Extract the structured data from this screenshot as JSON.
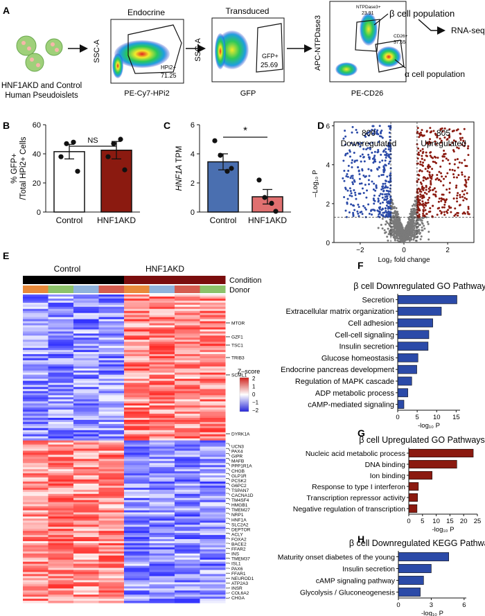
{
  "panel_labels": [
    "A",
    "B",
    "C",
    "D",
    "E",
    "F",
    "G",
    "H"
  ],
  "panel_a": {
    "cells_label_line1": "HNF1AKD and Control",
    "cells_label_line2": "Human Pseudoislets",
    "plots": [
      {
        "title": "Endocrine",
        "ylabel": "SSC-A",
        "xlabel": "PE-Cy7-HPi2",
        "gate_label": "HPi2+",
        "gate_value": "71.25"
      },
      {
        "title": "Transduced",
        "ylabel": "SSC-A",
        "xlabel": "GFP",
        "gate_label": "GFP+",
        "gate_value": "25.69"
      },
      {
        "title": "",
        "ylabel": "APC-NTPDase3",
        "xlabel": "PE-CD26",
        "gate1_label": "NTPDase3+",
        "gate1_value": "23.91",
        "gate2_label": "CD26+",
        "gate2_value": "37.55"
      }
    ],
    "beta_label": "β cell population",
    "alpha_label": "α cell population",
    "rnaseq_label": "RNA-seq"
  },
  "colors": {
    "blue": "#2b4aa8",
    "red": "#8b1a10",
    "bar_blue": "#4a6fb0",
    "bar_red": "#e07070",
    "grey": "#7a7a7a"
  },
  "chart_data": [
    {
      "id": "B",
      "type": "bar",
      "ylabel_line1": "% GFP+",
      "ylabel_line2": "/Total HPi2+ Cells",
      "categories": [
        "Control",
        "HNF1AKD"
      ],
      "values": [
        41.5,
        42.5
      ],
      "errors": [
        5,
        6
      ],
      "points": [
        [
          38,
          47,
          48,
          28
        ],
        [
          38,
          47,
          50,
          29
        ]
      ],
      "ylim": [
        0,
        60
      ],
      "yticks": [
        "0",
        "20",
        "40",
        "60"
      ],
      "significance": "NS"
    },
    {
      "id": "C",
      "type": "bar",
      "ylabel_italic": "HNF1A",
      "ylabel_rest": " TPM",
      "categories": [
        "Control",
        "HNF1AKD"
      ],
      "values": [
        3.45,
        1.05
      ],
      "errors": [
        0.55,
        0.5
      ],
      "points": [
        [
          4.9,
          3.9,
          2.8,
          3.0
        ],
        [
          2.2,
          1.0,
          0.6,
          0.05
        ]
      ],
      "ylim": [
        0,
        6
      ],
      "yticks": [
        "0",
        "2",
        "4",
        "6"
      ],
      "significance": "*"
    },
    {
      "id": "D",
      "type": "scatter",
      "xlabel": "Log₂ fold change",
      "ylabel": "–Log₁₀ P",
      "xlim": [
        -3.2,
        3.2
      ],
      "ylim": [
        0,
        6.2
      ],
      "xticks": [
        "−2",
        "0",
        "2"
      ],
      "yticks": [
        "0",
        "2",
        "4",
        "6"
      ],
      "down_count": "800",
      "down_label": "Downregulated",
      "up_count": "805",
      "up_label": "Upregulated",
      "fc_threshold": 0.6,
      "p_threshold": 1.3
    },
    {
      "id": "E",
      "type": "heatmap",
      "condition_label": "Condition",
      "donor_label": "Donor",
      "control_label": "Control",
      "hnf1akd_label": "HNF1AKD",
      "colorbar_title": "Z–score",
      "colorbar_ticks": [
        "2",
        "1",
        "0",
        "−1",
        "−2"
      ],
      "columns": 8,
      "genes": [
        "MTOR",
        "GZF1",
        "TSC1",
        "TRIB3",
        "SCML1",
        "DYRK1A",
        "UCN3",
        "PAX4",
        "GIPR",
        "MAFB",
        "PPP1R1A",
        "CHGB",
        "GLP1R",
        "PCSK2",
        "G6PC2",
        "TSPAN7",
        "CACNA1D",
        "TM4SF4",
        "HMGB1",
        "TMEM27",
        "NRP1",
        "HNF1A",
        "SLC2A2",
        "DEPTOR",
        "ACLY",
        "FOXA2",
        "BACE2",
        "FFAR2",
        "INS",
        "TMEM37",
        "ISL1",
        "PAX6",
        "FFAR1",
        "NEUROD1",
        "ATP2A3",
        "INSR",
        "COL6A2",
        "CHGA"
      ]
    },
    {
      "id": "F",
      "type": "bar",
      "orientation": "horizontal",
      "title": "β cell Downregulated GO Pathways",
      "categories": [
        "Secretion",
        "Extracellular matrix organization",
        "Cell adhesion",
        "Cell-cell signaling",
        "Insulin secretion",
        "Glucose homeostasis",
        "Endocrine pancreas development",
        "Regulation of MAPK cascade",
        "ADP metabolic process",
        "cAMP-mediated signaling"
      ],
      "values": [
        15.2,
        11.2,
        9.0,
        8.0,
        7.8,
        5.2,
        4.9,
        3.6,
        2.6,
        1.6
      ],
      "xlim": [
        0,
        16
      ],
      "xticks": [
        "0",
        "5",
        "10",
        "15"
      ],
      "xlabel": "-log₁₀ P"
    },
    {
      "id": "G",
      "type": "bar",
      "orientation": "horizontal",
      "title": "β cell Upregulated GO Pathways",
      "categories": [
        "Nucleic acid metabolic process",
        "DNA binding",
        "Ion binding",
        "Response to type I interferon",
        "Transcription repressor activity",
        "Negative regulation of transcription"
      ],
      "values": [
        23.5,
        17.5,
        8.5,
        3.5,
        3.2,
        3.0
      ],
      "xlim": [
        0,
        25
      ],
      "xticks": [
        "0",
        "5",
        "10",
        "15",
        "20",
        "25"
      ],
      "xlabel": "-log₁₀ P"
    },
    {
      "id": "H",
      "type": "bar",
      "orientation": "horizontal",
      "title": "β cell Downregulated KEGG Pathways",
      "categories": [
        "Maturity onset diabetes of the young",
        "Insulin secretion",
        "cAMP signaling pathway",
        "Glycolysis / Gluconeogenesis"
      ],
      "values": [
        4.6,
        3.0,
        2.3,
        2.0
      ],
      "xlim": [
        0,
        6.2
      ],
      "xticks": [
        "0",
        "3",
        "6"
      ],
      "xlabel": "-log₁₀ P"
    }
  ]
}
